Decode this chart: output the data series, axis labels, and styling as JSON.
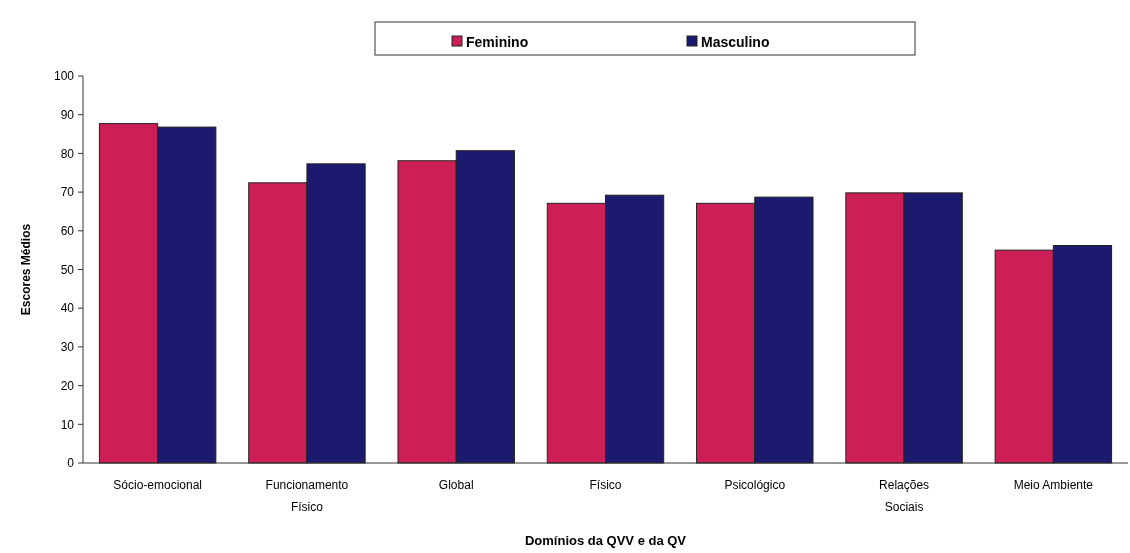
{
  "chart_data": {
    "type": "bar",
    "xlabel": "Domínios da QVV e da QV",
    "ylabel": "Escores Médios",
    "categories": [
      "Sócio-emocional",
      "Funcionamento Físico",
      "Global",
      "Físico",
      "Psicológico",
      "Relações Sociais",
      "Meio Ambiente"
    ],
    "series": [
      {
        "name": "Feminino",
        "color": "#cc1f55",
        "values": [
          87.7,
          72.4,
          78.1,
          67.1,
          67.1,
          69.8,
          55
        ]
      },
      {
        "name": "Masculino",
        "color": "#1c1a6e",
        "values": [
          86.8,
          77.3,
          80.7,
          69.2,
          68.7,
          69.8,
          56.2
        ]
      }
    ],
    "ylim": [
      0,
      100
    ],
    "yticks": [
      0,
      10,
      20,
      30,
      40,
      50,
      60,
      70,
      80,
      90,
      100
    ],
    "legend": "top",
    "grid": false
  }
}
